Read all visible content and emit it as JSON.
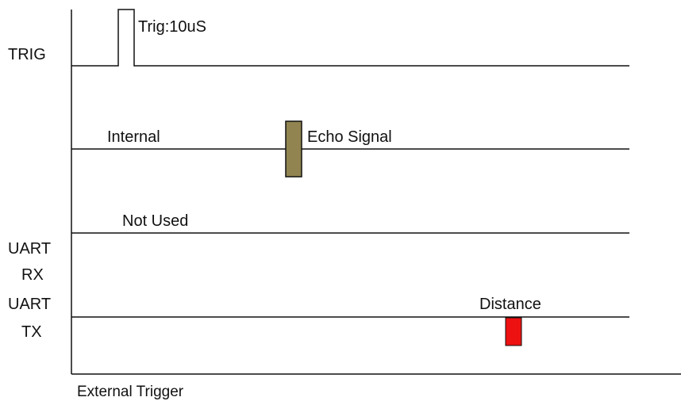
{
  "signals": [
    {
      "label_lines": [
        "TRIG"
      ],
      "annotation": "Trig:10uS"
    },
    {
      "label_lines": [],
      "annotation": "Internal",
      "pulse_label": "Echo Signal"
    },
    {
      "label_lines": [
        "UART",
        "RX"
      ],
      "annotation": "Not Used"
    },
    {
      "label_lines": [
        "UART",
        "TX"
      ],
      "annotation": "Distance"
    }
  ],
  "x_axis_label": "External Trigger"
}
